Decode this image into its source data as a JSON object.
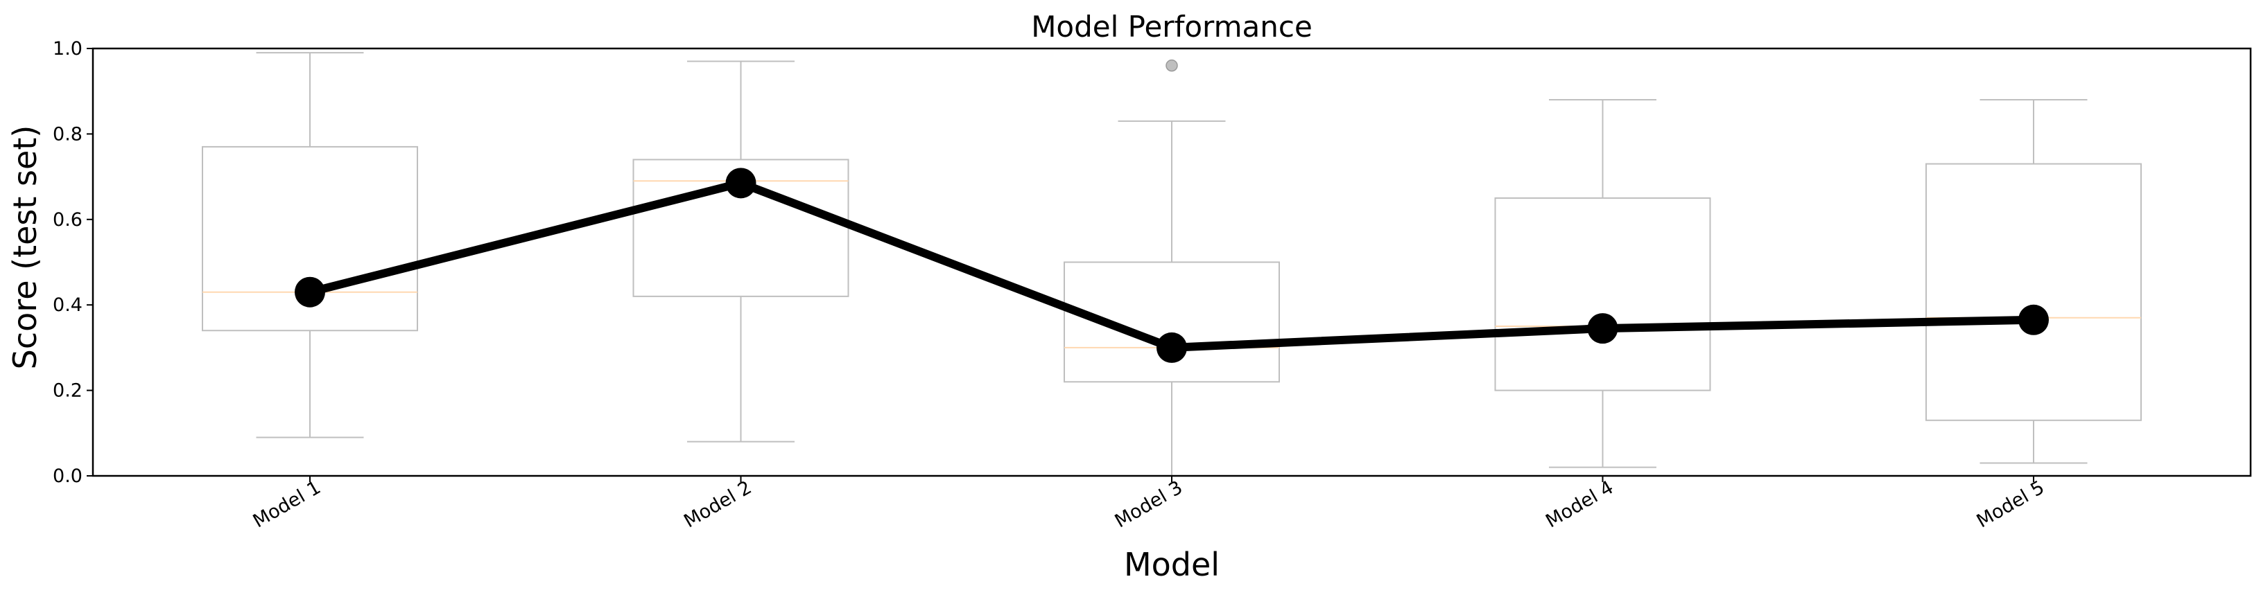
{
  "chart_data": {
    "type": "box",
    "title": "Model Performance",
    "xlabel": "Model",
    "ylabel": "Score (test set)",
    "ylim": [
      0.0,
      1.0
    ],
    "yticks": [
      "0.0",
      "0.2",
      "0.4",
      "0.6",
      "0.8",
      "1.0"
    ],
    "categories": [
      "Model 1",
      "Model 2",
      "Model 3",
      "Model 4",
      "Model 5"
    ],
    "boxes": [
      {
        "whisker_low": 0.09,
        "q1": 0.34,
        "median": 0.43,
        "q3": 0.77,
        "whisker_high": 0.99,
        "outliers": []
      },
      {
        "whisker_low": 0.08,
        "q1": 0.42,
        "median": 0.69,
        "q3": 0.74,
        "whisker_high": 0.97,
        "outliers": []
      },
      {
        "whisker_low": 0.0,
        "q1": 0.22,
        "median": 0.3,
        "q3": 0.5,
        "whisker_high": 0.83,
        "outliers": [
          0.96
        ]
      },
      {
        "whisker_low": 0.02,
        "q1": 0.2,
        "median": 0.35,
        "q3": 0.65,
        "whisker_high": 0.88,
        "outliers": []
      },
      {
        "whisker_low": 0.03,
        "q1": 0.13,
        "median": 0.37,
        "q3": 0.73,
        "whisker_high": 0.88,
        "outliers": []
      }
    ],
    "line_values": [
      0.43,
      0.685,
      0.3,
      0.345,
      0.365
    ],
    "grid": false,
    "colors": {
      "box": "#bfbfbf",
      "median": "#ffd8b0",
      "line": "#000000",
      "outlier": "#bfbfbf"
    }
  }
}
